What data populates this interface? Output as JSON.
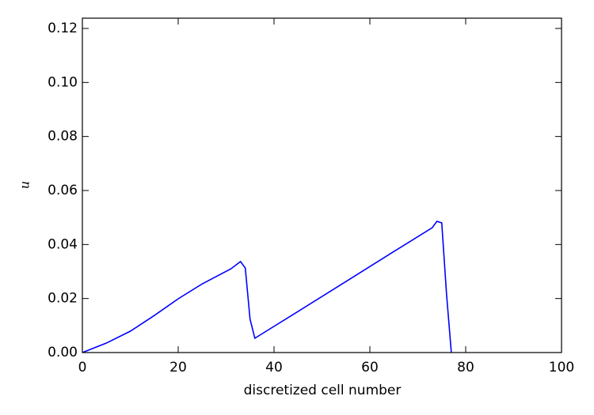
{
  "chart_data": {
    "type": "line",
    "x_label": "discretized cell number",
    "y_label": "u",
    "series": [
      {
        "name": "u",
        "color": "#0000ff",
        "x": [
          0,
          5,
          10,
          15,
          20,
          25,
          31,
          33,
          34,
          35,
          36,
          37,
          45,
          55,
          65,
          73,
          74,
          75,
          76,
          77
        ],
        "values": [
          0,
          0.0035,
          0.0079,
          0.0137,
          0.0199,
          0.0254,
          0.031,
          0.0337,
          0.0313,
          0.0123,
          0.0053,
          0.0064,
          0.0152,
          0.0263,
          0.0374,
          0.0462,
          0.0486,
          0.048,
          0.0217,
          0
        ]
      }
    ],
    "xlim": [
      0,
      100
    ],
    "ylim": [
      0,
      0.1238
    ],
    "xticks": [
      0,
      20,
      40,
      60,
      80,
      100
    ],
    "yticks": [
      {
        "value": 0,
        "label": "0.00"
      },
      {
        "value": 0.02,
        "label": "0.02"
      },
      {
        "value": 0.04,
        "label": "0.04"
      },
      {
        "value": 0.06,
        "label": "0.06"
      },
      {
        "value": 0.08,
        "label": "0.08"
      },
      {
        "value": 0.1,
        "label": "0.10"
      },
      {
        "value": 0.12,
        "label": "0.12"
      }
    ],
    "grid": false
  }
}
